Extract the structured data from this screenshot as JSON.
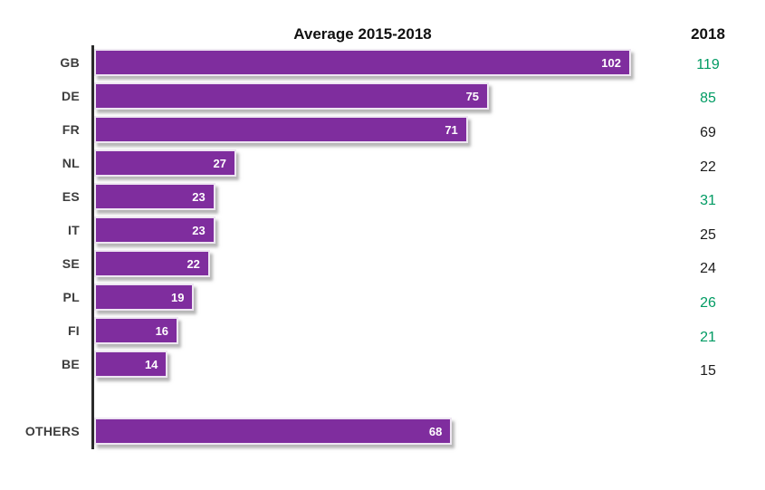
{
  "title": "Average 2015-2018",
  "right_column_header": "2018",
  "colors": {
    "bar": "#7F2D9E",
    "bar_border": "#eee6f2",
    "green": "#009B63",
    "dark": "#1c1c1c",
    "category_label": "#3d3d3d",
    "axis": "#2b2b2b"
  },
  "chart_data": {
    "type": "bar",
    "orientation": "horizontal",
    "title": "Average 2015-2018",
    "categories": [
      "GB",
      "DE",
      "FR",
      "NL",
      "ES",
      "IT",
      "SE",
      "PL",
      "FI",
      "BE",
      "OTHERS"
    ],
    "series": [
      {
        "name": "Average 2015-2018",
        "values": [
          102,
          75,
          71,
          27,
          23,
          23,
          22,
          19,
          16,
          14,
          68
        ]
      },
      {
        "name": "2018",
        "values": [
          119,
          85,
          69,
          22,
          31,
          25,
          24,
          26,
          21,
          15,
          null
        ]
      }
    ],
    "xlim": [
      0,
      102
    ],
    "grid": false,
    "legend_position": "none",
    "notes": "2018 column values shown in green when higher than average, black otherwise; OTHERS has no 2018 value and is separated by a gap"
  },
  "rows": [
    {
      "label": "GB",
      "avg": 102,
      "y2018": "119",
      "y2018_color": "#009B63",
      "gap_before": false
    },
    {
      "label": "DE",
      "avg": 75,
      "y2018": "85",
      "y2018_color": "#009B63",
      "gap_before": false
    },
    {
      "label": "FR",
      "avg": 71,
      "y2018": "69",
      "y2018_color": "#1c1c1c",
      "gap_before": false
    },
    {
      "label": "NL",
      "avg": 27,
      "y2018": "22",
      "y2018_color": "#1c1c1c",
      "gap_before": false
    },
    {
      "label": "ES",
      "avg": 23,
      "y2018": "31",
      "y2018_color": "#009B63",
      "gap_before": false
    },
    {
      "label": "IT",
      "avg": 23,
      "y2018": "25",
      "y2018_color": "#1c1c1c",
      "gap_before": false
    },
    {
      "label": "SE",
      "avg": 22,
      "y2018": "24",
      "y2018_color": "#1c1c1c",
      "gap_before": false
    },
    {
      "label": "PL",
      "avg": 19,
      "y2018": "26",
      "y2018_color": "#009B63",
      "gap_before": false
    },
    {
      "label": "FI",
      "avg": 16,
      "y2018": "21",
      "y2018_color": "#009B63",
      "gap_before": false
    },
    {
      "label": "BE",
      "avg": 14,
      "y2018": "15",
      "y2018_color": "#1c1c1c",
      "gap_before": false
    },
    {
      "label": "OTHERS",
      "avg": 68,
      "y2018": "",
      "y2018_color": null,
      "gap_before": true
    }
  ]
}
